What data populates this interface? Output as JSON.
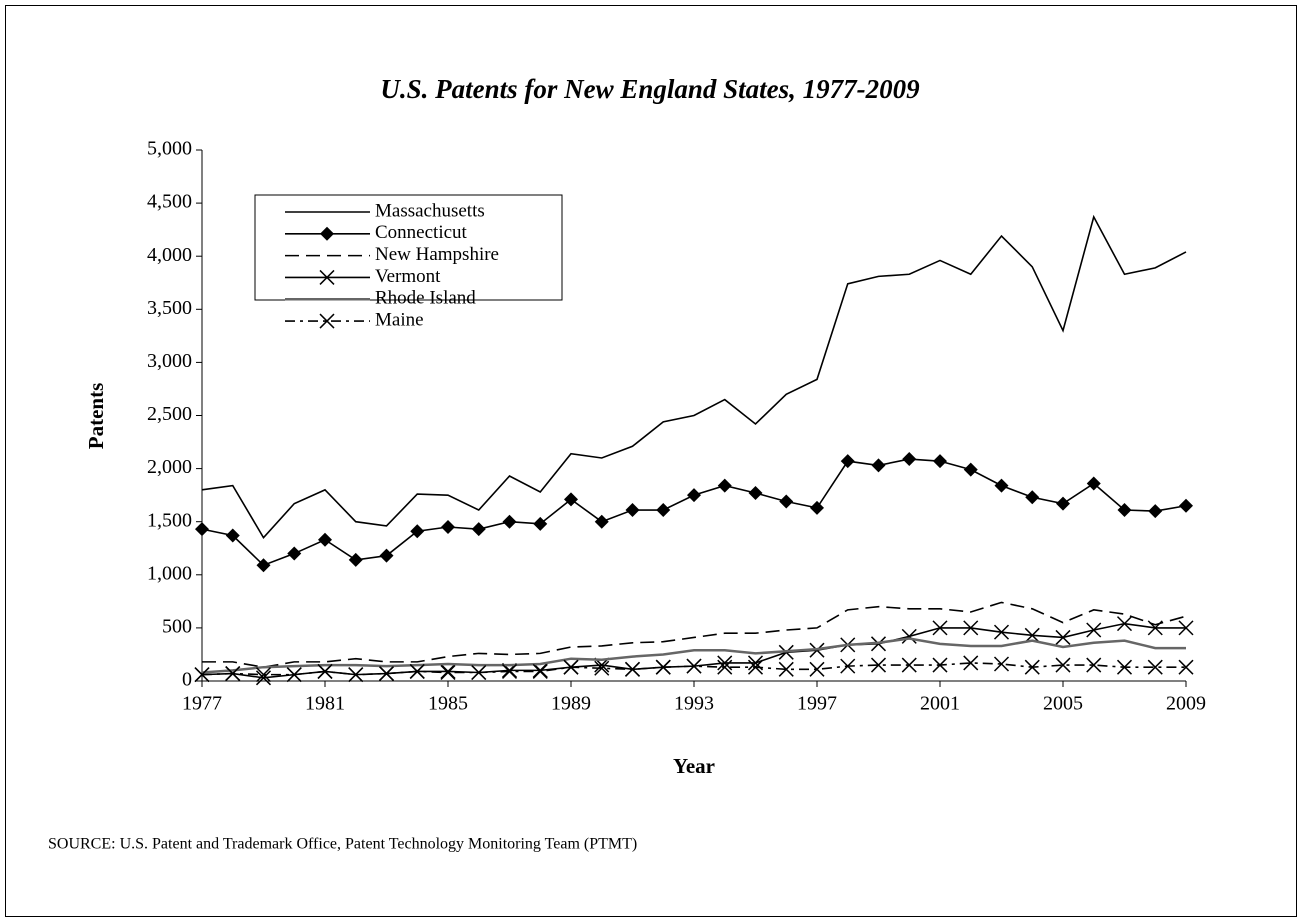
{
  "chart_data": {
    "type": "line",
    "title": "U.S. Patents for New England States, 1977-2009",
    "x_label": "Year",
    "y_label": "Patents",
    "source": "SOURCE: U.S. Patent and Trademark Office, Patent Technology Monitoring Team (PTMT)",
    "x": [
      1977,
      1978,
      1979,
      1980,
      1981,
      1982,
      1983,
      1984,
      1985,
      1986,
      1987,
      1988,
      1989,
      1990,
      1991,
      1992,
      1993,
      1994,
      1995,
      1996,
      1997,
      1998,
      1999,
      2000,
      2001,
      2002,
      2003,
      2004,
      2005,
      2006,
      2007,
      2008,
      2009
    ],
    "xlim": [
      1977,
      2009
    ],
    "xticks": [
      1977,
      1981,
      1985,
      1989,
      1993,
      1997,
      2001,
      2005,
      2009
    ],
    "ylim": [
      0,
      5000
    ],
    "yticks": [
      0,
      500,
      {
        "value": 1000,
        "label": "1,000"
      },
      {
        "value": 1500,
        "label": "1,500"
      },
      {
        "value": 2000,
        "label": "2,000"
      },
      {
        "value": 2500,
        "label": "2,500"
      },
      {
        "value": 3000,
        "label": "3,000"
      },
      {
        "value": 3500,
        "label": "3,500"
      },
      {
        "value": 4000,
        "label": "4,000"
      },
      {
        "value": 4500,
        "label": "4,500"
      },
      {
        "value": 5000,
        "label": "5,000"
      }
    ],
    "grid": false,
    "legend": "upper left",
    "series": [
      {
        "name": "Massachusetts",
        "color": "#000000",
        "dash": "solid",
        "marker": "none",
        "values": [
          1800,
          1840,
          1350,
          1670,
          1800,
          1500,
          1460,
          1760,
          1750,
          1610,
          1930,
          1780,
          2140,
          2100,
          2210,
          2440,
          2500,
          2650,
          2420,
          2700,
          2840,
          3740,
          3810,
          3830,
          3960,
          3830,
          4190,
          3900,
          3300,
          4370,
          3830,
          3890,
          4040
        ]
      },
      {
        "name": "Connecticut",
        "color": "#000000",
        "dash": "solid",
        "marker": "diamond",
        "values": [
          1430,
          1370,
          1090,
          1200,
          1330,
          1140,
          1180,
          1410,
          1450,
          1430,
          1500,
          1480,
          1710,
          1500,
          1610,
          1610,
          1750,
          1840,
          1770,
          1690,
          1630,
          2070,
          2030,
          2090,
          2070,
          1990,
          1840,
          1730,
          1670,
          1860,
          1610,
          1600,
          1650
        ]
      },
      {
        "name": "New Hampshire",
        "color": "#000000",
        "dash": "dashed",
        "marker": "none",
        "values": [
          180,
          180,
          130,
          180,
          180,
          210,
          180,
          180,
          230,
          260,
          250,
          260,
          320,
          330,
          360,
          370,
          410,
          450,
          450,
          480,
          500,
          670,
          700,
          680,
          680,
          650,
          740,
          680,
          550,
          670,
          630,
          530,
          610
        ]
      },
      {
        "name": "Vermont",
        "color": "#000000",
        "dash": "solid",
        "marker": "x",
        "values": [
          60,
          70,
          30,
          60,
          90,
          60,
          70,
          90,
          90,
          80,
          100,
          100,
          130,
          150,
          110,
          130,
          140,
          170,
          170,
          270,
          290,
          340,
          350,
          420,
          500,
          500,
          460,
          430,
          410,
          480,
          540,
          500,
          500
        ]
      },
      {
        "name": "Rhode Island",
        "color": "#666666",
        "dash": "solid",
        "marker": "none",
        "values": [
          80,
          100,
          130,
          140,
          150,
          150,
          140,
          150,
          160,
          150,
          150,
          160,
          210,
          200,
          230,
          250,
          290,
          290,
          260,
          280,
          300,
          340,
          360,
          400,
          350,
          330,
          330,
          380,
          320,
          360,
          380,
          310,
          310
        ]
      },
      {
        "name": "Maine",
        "color": "#000000",
        "dash": "dashdot",
        "marker": "x",
        "values": [
          60,
          70,
          60,
          60,
          90,
          60,
          70,
          90,
          80,
          80,
          90,
          90,
          130,
          120,
          110,
          130,
          140,
          130,
          130,
          110,
          110,
          140,
          150,
          150,
          150,
          170,
          160,
          130,
          150,
          150,
          130,
          130,
          130
        ]
      }
    ]
  }
}
